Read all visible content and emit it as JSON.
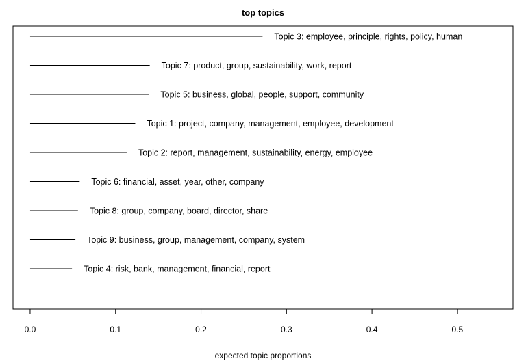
{
  "chart_data": {
    "type": "bar",
    "title": "top topics",
    "xlabel": "expected topic proportions",
    "ylabel": "",
    "xlim": [
      -0.02,
      0.565
    ],
    "xticks": [
      "0.0",
      "0.1",
      "0.2",
      "0.3",
      "0.4",
      "0.5"
    ],
    "grid": false,
    "orientation": "horizontal",
    "bar_style": "line",
    "categories": [
      "Topic 3: employee, principle, rights, policy, human",
      "Topic 7: product, group, sustainability, work, report",
      "Topic 5: business, global, people, support, community",
      "Topic 1: project, company, management, employee, development",
      "Topic 2: report, management, sustainability, energy, employee",
      "Topic 6: financial, asset, year, other, company",
      "Topic 8: group, company, board, director, share",
      "Topic 9: business, group, management, company, system",
      "Topic 4: risk, bank, management, financial, report"
    ],
    "values": [
      0.272,
      0.14,
      0.139,
      0.123,
      0.113,
      0.058,
      0.056,
      0.053,
      0.049
    ]
  }
}
